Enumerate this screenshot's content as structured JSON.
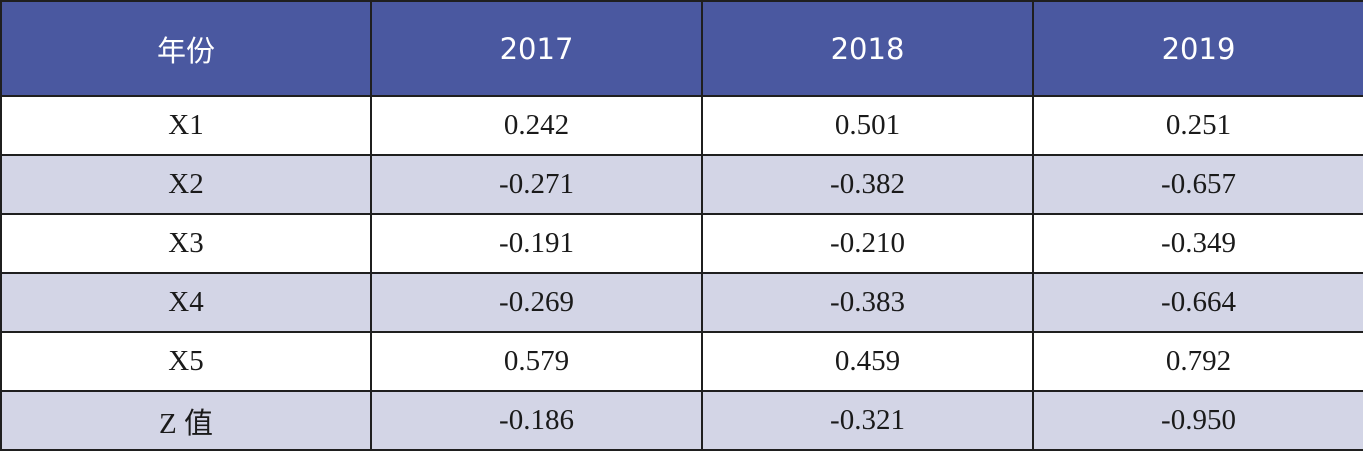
{
  "table": {
    "header": [
      "年份",
      "2017",
      "2018",
      "2019"
    ],
    "rows": [
      {
        "label": "X1",
        "values": [
          "0.242",
          "0.501",
          "0.251"
        ]
      },
      {
        "label": "X2",
        "values": [
          "-0.271",
          "-0.382",
          "-0.657"
        ]
      },
      {
        "label": "X3",
        "values": [
          "-0.191",
          "-0.210",
          "-0.349"
        ]
      },
      {
        "label": "X4",
        "values": [
          "-0.269",
          "-0.383",
          "-0.664"
        ]
      },
      {
        "label": "X5",
        "values": [
          "0.579",
          "0.459",
          "0.792"
        ]
      },
      {
        "label": "Z 值",
        "values": [
          "-0.186",
          "-0.321",
          "-0.950"
        ]
      }
    ]
  },
  "colors": {
    "header_bg": "#4a58a0",
    "header_text": "#ffffff",
    "stripe_bg": "#d3d5e6",
    "border": "#1f1f1f"
  }
}
